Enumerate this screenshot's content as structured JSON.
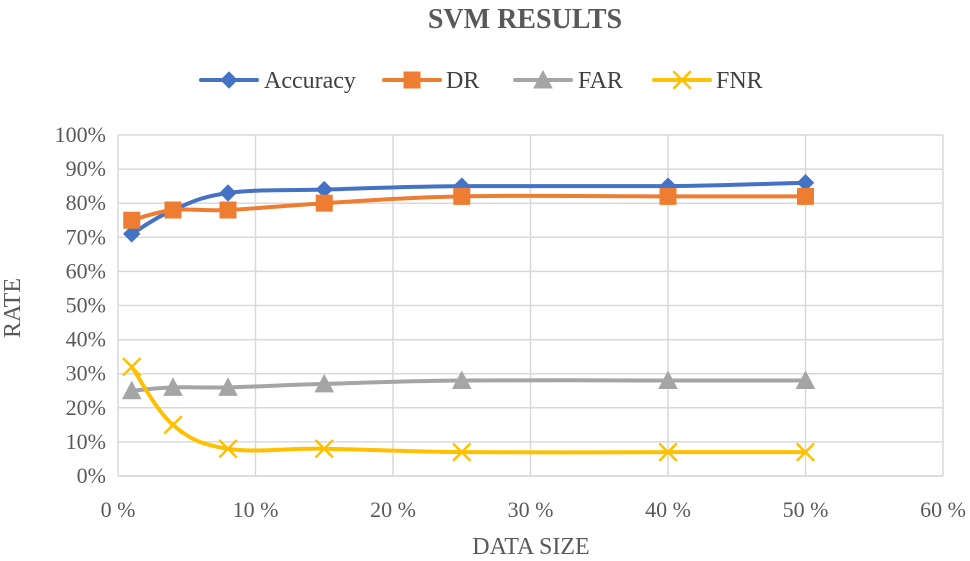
{
  "chart_data": {
    "type": "line",
    "title": "SVM RESULTS",
    "xlabel": "DATA SIZE",
    "ylabel": "RATE",
    "x": [
      1,
      4,
      8,
      15,
      25,
      40,
      50
    ],
    "xlim": [
      0,
      60
    ],
    "ylim": [
      0,
      100
    ],
    "x_ticks": [
      0,
      10,
      20,
      30,
      40,
      50,
      60
    ],
    "y_ticks": [
      0,
      10,
      20,
      30,
      40,
      50,
      60,
      70,
      80,
      90,
      100
    ],
    "x_tick_labels": [
      "0 %",
      "10 %",
      "20 %",
      "30 %",
      "40 %",
      "50 %",
      "60 %"
    ],
    "y_tick_labels": [
      "0%",
      "10%",
      "20%",
      "30%",
      "40%",
      "50%",
      "60%",
      "70%",
      "80%",
      "90%",
      "100%"
    ],
    "grid": true,
    "legend_position": "top-center",
    "series": [
      {
        "name": "Accuracy",
        "marker": "diamond",
        "color": "#4472C4",
        "values": [
          71,
          78,
          83,
          84,
          85,
          85,
          86
        ]
      },
      {
        "name": "DR",
        "marker": "square",
        "color": "#ED7D31",
        "values": [
          75,
          78,
          78,
          80,
          82,
          82,
          82
        ]
      },
      {
        "name": "FAR",
        "marker": "triangle",
        "color": "#A5A5A5",
        "values": [
          25,
          26,
          26,
          27,
          28,
          28,
          28
        ]
      },
      {
        "name": "FNR",
        "marker": "x",
        "color": "#FFC000",
        "values": [
          32,
          15,
          8,
          8,
          7,
          7,
          7
        ]
      }
    ]
  }
}
